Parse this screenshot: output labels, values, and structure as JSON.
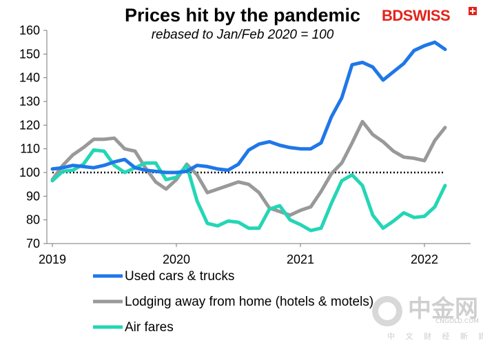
{
  "brand": {
    "logo_text": "BDSWISS",
    "logo_color": "#e32219",
    "watermark_cn": "中金网",
    "watermark_domain": "CNGOLD.COM",
    "watermark_tagline": "中 文 财 经 新 媒 体"
  },
  "chart_data": {
    "type": "line",
    "title": "Prices hit by the pandemic",
    "subtitle": "rebased to Jan/Feb 2020 = 100",
    "xlabel": "",
    "ylabel": "",
    "x_tick_labels": [
      "2019",
      "2020",
      "2021",
      "2022"
    ],
    "y_ticks": [
      70,
      80,
      90,
      100,
      110,
      120,
      130,
      140,
      150,
      160
    ],
    "ylim": [
      70,
      160
    ],
    "xlim": [
      "2019-01",
      "2022-03"
    ],
    "grid": false,
    "reference_line": {
      "y": 100,
      "style": "dotted",
      "color": "#000000"
    },
    "legend_position": "bottom",
    "x": [
      "2019-01",
      "2019-02",
      "2019-03",
      "2019-04",
      "2019-05",
      "2019-06",
      "2019-07",
      "2019-08",
      "2019-09",
      "2019-10",
      "2019-11",
      "2019-12",
      "2020-01",
      "2020-02",
      "2020-03",
      "2020-04",
      "2020-05",
      "2020-06",
      "2020-07",
      "2020-08",
      "2020-09",
      "2020-10",
      "2020-11",
      "2020-12",
      "2021-01",
      "2021-02",
      "2021-03",
      "2021-04",
      "2021-05",
      "2021-06",
      "2021-07",
      "2021-08",
      "2021-09",
      "2021-10",
      "2021-11",
      "2021-12",
      "2022-01",
      "2022-02",
      "2022-03"
    ],
    "series": [
      {
        "name": "Used cars & trucks",
        "color": "#1f77e8",
        "values": [
          101.5,
          102,
          103,
          102.5,
          102,
          103,
          104.5,
          105.5,
          102,
          101,
          100.5,
          100,
          100,
          100.5,
          103,
          102.5,
          101.5,
          101,
          103.5,
          109.5,
          112,
          113,
          111.5,
          110.5,
          110,
          110,
          112.5,
          123.5,
          131.5,
          145.5,
          146.5,
          144.5,
          139,
          142.5,
          146,
          151.5,
          153.5,
          155,
          152
        ]
      },
      {
        "name": "Lodging away from home (hotels & motels)",
        "color": "#999999",
        "values": [
          97,
          103,
          107.5,
          110.5,
          114,
          114,
          114.5,
          110,
          109,
          102,
          96,
          93,
          97,
          103.5,
          99,
          91.5,
          93,
          94.5,
          96,
          95,
          91.5,
          85,
          83.5,
          82,
          84,
          85.5,
          92,
          99.5,
          104,
          112.5,
          121.5,
          116,
          113,
          109,
          106.5,
          106,
          105,
          113.5,
          119
        ]
      },
      {
        "name": "Air fares",
        "color": "#24d6b5",
        "values": [
          96.5,
          100.5,
          101,
          103.5,
          109.5,
          109,
          103,
          100,
          102,
          104,
          104,
          97,
          98,
          103,
          88,
          78.5,
          77.5,
          79.5,
          79,
          76.5,
          76.5,
          84.5,
          86,
          80,
          78,
          75.5,
          76.5,
          87,
          96.5,
          99,
          94.5,
          82,
          76.5,
          79.5,
          83,
          81,
          81.5,
          85.5,
          94.5
        ]
      }
    ]
  }
}
